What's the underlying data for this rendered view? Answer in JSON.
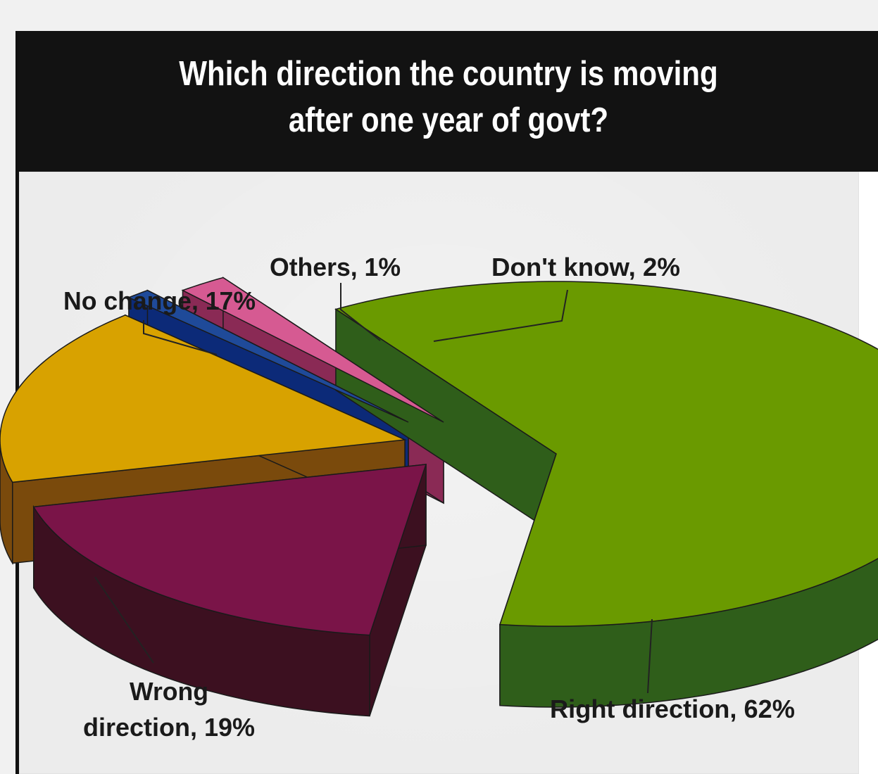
{
  "chart_data": {
    "type": "pie",
    "title": "Which direction the country is moving after one year of govt?",
    "title_lines": [
      "Which direction the country is moving",
      "after one year of govt?"
    ],
    "slices": [
      {
        "label": "Right direction",
        "value": 62,
        "text": "Right direction, 62%",
        "color": "#6a9a00",
        "side_color": "#2f5e1a"
      },
      {
        "label": "Wrong direction",
        "value": 19,
        "text_lines": [
          "Wrong",
          "direction, 19%"
        ],
        "color": "#7a1448",
        "side_color": "#3c1020"
      },
      {
        "label": "No change",
        "value": 17,
        "text": "No change, 17%",
        "color": "#d8a200",
        "side_color": "#7a4a0c"
      },
      {
        "label": "Others",
        "value": 1,
        "text": "Others, 1%",
        "color": "#1f4a99",
        "side_color": "#0c2a78"
      },
      {
        "label": "Don't know",
        "value": 2,
        "text": "Don't know, 2%",
        "color": "#d65a92",
        "side_color": "#8a2a55"
      }
    ],
    "style": "3d-exploded"
  }
}
